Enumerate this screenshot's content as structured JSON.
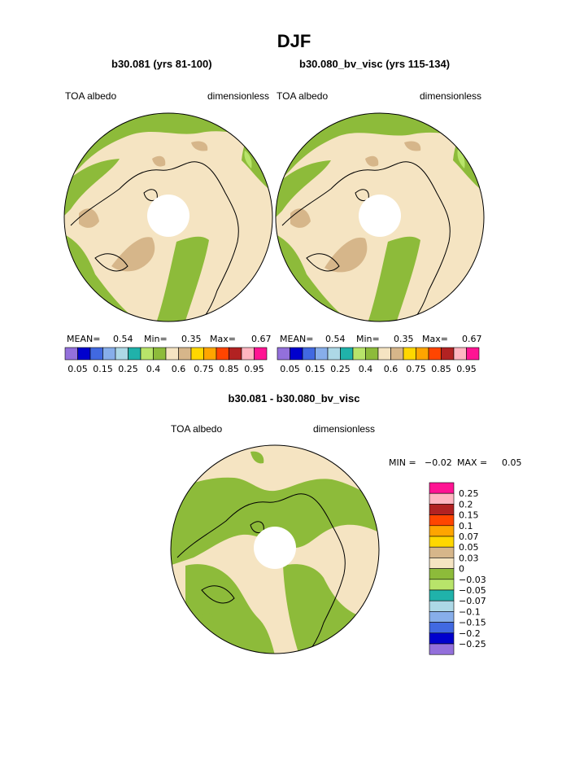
{
  "page": {
    "title": "DJF",
    "left_subtitle": "b30.081 (yrs 81-100)",
    "right_subtitle": "b30.080_bv_visc (yrs 115-134)",
    "diff_subtitle": "b30.081 - b30.080_bv_visc"
  },
  "colors": {
    "tan": "#f5e4c2",
    "green": "#8dbb3a",
    "brown": "#d6b68a",
    "lightgreen": "#b8e46a",
    "land_outline": "#000000"
  },
  "chart_data": [
    {
      "type": "heatmap",
      "name": "left",
      "variable_label": "TOA albedo",
      "units_label": "dimensionless",
      "stats": {
        "mean_label": "MEAN=",
        "mean": "0.54",
        "min_label": "Min=",
        "min": "0.35",
        "max_label": "Max=",
        "max": "0.67"
      },
      "colorbar": {
        "colors": [
          "#9370db",
          "#0000cd",
          "#4169e1",
          "#87aeea",
          "#add8e6",
          "#20b2aa",
          "#b8e46a",
          "#8dbb3a",
          "#f5e4c2",
          "#d6b68a",
          "#ffd700",
          "#ffa500",
          "#ff4500",
          "#b22222",
          "#ffb6c1",
          "#ff1493"
        ],
        "tick_labels": [
          "0.05",
          "0.15",
          "0.25",
          "0.4",
          "0.6",
          "0.75",
          "0.85",
          "0.95"
        ]
      }
    },
    {
      "type": "heatmap",
      "name": "right",
      "variable_label": "TOA albedo",
      "units_label": "dimensionless",
      "stats": {
        "mean_label": "MEAN=",
        "mean": "0.54",
        "min_label": "Min=",
        "min": "0.35",
        "max_label": "Max=",
        "max": "0.67"
      },
      "colorbar": {
        "colors": [
          "#9370db",
          "#0000cd",
          "#4169e1",
          "#87aeea",
          "#add8e6",
          "#20b2aa",
          "#b8e46a",
          "#8dbb3a",
          "#f5e4c2",
          "#d6b68a",
          "#ffd700",
          "#ffa500",
          "#ff4500",
          "#b22222",
          "#ffb6c1",
          "#ff1493"
        ],
        "tick_labels": [
          "0.05",
          "0.15",
          "0.25",
          "0.4",
          "0.6",
          "0.75",
          "0.85",
          "0.95"
        ]
      }
    },
    {
      "type": "heatmap",
      "name": "difference",
      "variable_label": "TOA albedo",
      "units_label": "dimensionless",
      "stats": {
        "min_label": "MIN =",
        "min": "−0.02",
        "max_label": "MAX =",
        "max": "0.05"
      },
      "colorbar": {
        "colors_top_to_bottom": [
          "#ff1493",
          "#ffb6c1",
          "#b22222",
          "#ff4500",
          "#ffa500",
          "#ffd700",
          "#d6b68a",
          "#f5e4c2",
          "#8dbb3a",
          "#b8e46a",
          "#20b2aa",
          "#add8e6",
          "#87aeea",
          "#4169e1",
          "#0000cd",
          "#9370db"
        ],
        "tick_labels_top_to_bottom": [
          "0.25",
          "0.2",
          "0.15",
          "0.1",
          "0.07",
          "0.05",
          "0.03",
          "0",
          "−0.03",
          "−0.05",
          "−0.07",
          "−0.1",
          "−0.15",
          "−0.2",
          "−0.25"
        ]
      }
    }
  ]
}
